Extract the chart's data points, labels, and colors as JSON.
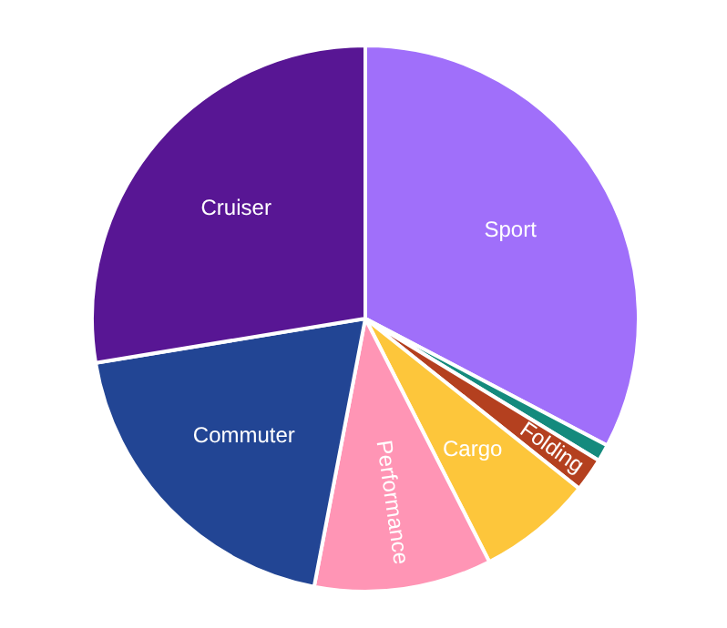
{
  "chart_data": {
    "type": "pie",
    "categories": [
      "Sport",
      null,
      "Folding",
      "Cargo",
      "Performance",
      "Commuter",
      "Cruiser"
    ],
    "values": [
      32.7,
      1.0,
      2.0,
      6.8,
      10.5,
      19.4,
      27.6
    ],
    "colors": [
      "#a06ffa",
      "#148a7d",
      "#b4401f",
      "#fdc63b",
      "#ff95b5",
      "#224594",
      "#581694"
    ],
    "legend": false
  }
}
